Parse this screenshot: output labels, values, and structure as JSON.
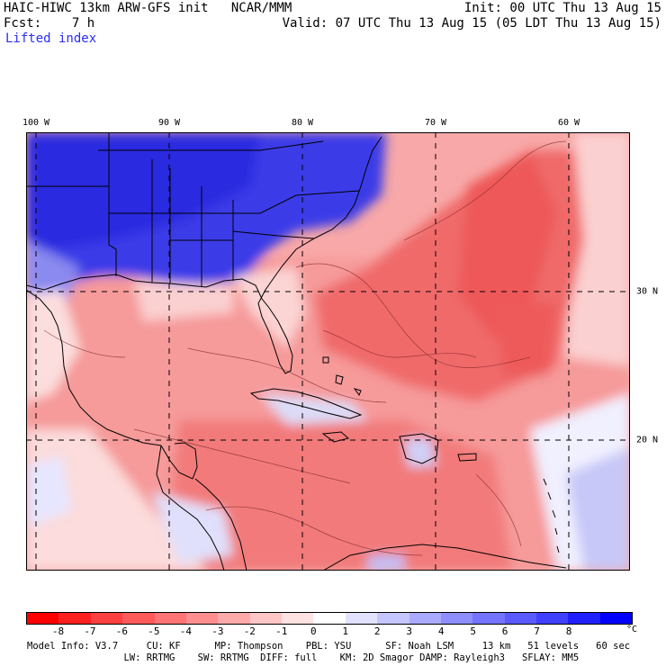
{
  "header": {
    "model_line": "HAIC-HIWC 13km ARW-GFS init   NCAR/MMM",
    "fcst_line": "Fcst:    7 h",
    "field_name": "Lifted index",
    "init_line": "Init: 00 UTC Thu 13 Aug 15",
    "valid_line": "Valid: 07 UTC Thu 13 Aug 15 (05 LDT Thu 13 Aug 15)"
  },
  "map": {
    "lon_labels": [
      "100 W",
      "90 W",
      "80 W",
      "70 W",
      "60 W"
    ],
    "lat_labels": [
      "30 N",
      "20 N"
    ],
    "colors": {
      "negative_strong": "#f05a5a",
      "negative_mid": "#f58a8a",
      "negative_weak": "#f9c0c0",
      "positive_weak": "#c8c8ff",
      "positive_mid": "#7878f0",
      "positive_strong": "#2020e0",
      "ocean_neutral": "#fde6e6",
      "grid_line": "#000000"
    }
  },
  "colorbar": {
    "ticks": [
      "-8",
      "-7",
      "-6",
      "-5",
      "-4",
      "-3",
      "-2",
      "-1",
      "0",
      "1",
      "2",
      "3",
      "4",
      "5",
      "6",
      "7",
      "8"
    ],
    "unit": "°C",
    "colors": [
      "#ff0000",
      "#ff2020",
      "#ff4040",
      "#ff5a5a",
      "#ff7474",
      "#ff8e8e",
      "#ffaaaa",
      "#ffc6c6",
      "#ffe2e2",
      "#ffffff",
      "#e2e2ff",
      "#c6c6ff",
      "#aaaaff",
      "#8e8eff",
      "#7474ff",
      "#5a5aff",
      "#4040ff",
      "#2020ff",
      "#0000ff"
    ]
  },
  "model_info": {
    "line1": "Model Info: V3.7     CU: KF      MP: Thompson    PBL: YSU      SF: Noah LSM     13 km   51 levels   60 sec",
    "line2": "                 LW: RRTMG    SW: RRTMG  DIFF: full    KM: 2D Smagor DAMP: Rayleigh3   SFLAY: MM5"
  }
}
